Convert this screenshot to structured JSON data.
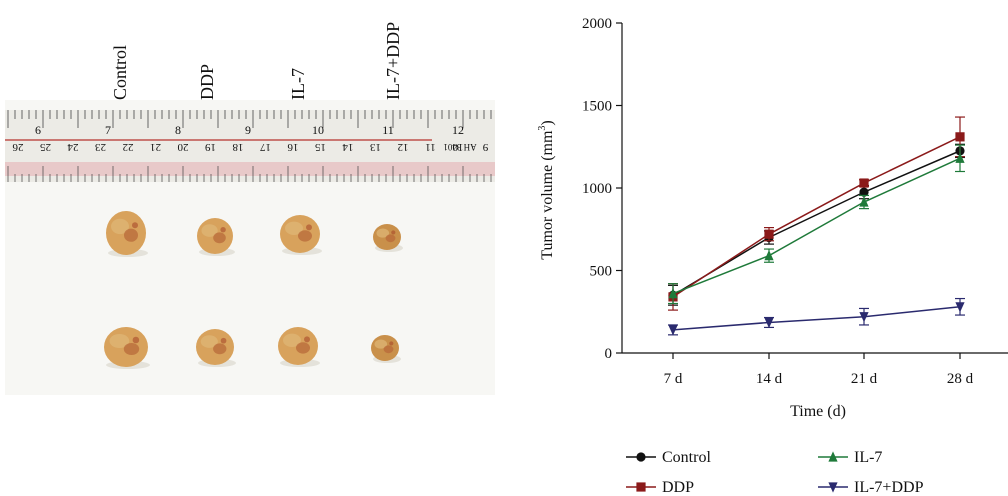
{
  "photo": {
    "group_labels": [
      "Control",
      "DDP",
      "IL-7",
      "IL-7+DDP"
    ],
    "ruler_top_numbers": [
      "6",
      "7",
      "8",
      "9",
      "10",
      "11",
      "12"
    ],
    "ruler_bottom_numbers": [
      "26",
      "25",
      "24",
      "23",
      "22",
      "21",
      "20",
      "19",
      "18",
      "17",
      "16",
      "15",
      "14",
      "13",
      "12",
      "11",
      "10",
      "9"
    ],
    "ruler_stamp": "AH 3401",
    "tumor_colors": [
      "#d8a25c",
      "#c9904a",
      "#b86a3a",
      "#e0b878",
      "#a84a2a"
    ]
  },
  "chart_data": {
    "type": "line",
    "x": [
      "7 d",
      "14 d",
      "21 d",
      "28 d"
    ],
    "xlabel": "Time (d)",
    "ylabel_main": "Tumor volume (mm",
    "ylabel_sup": "3",
    "ylabel_end": ")",
    "ylim": [
      0,
      2000
    ],
    "yticks": [
      "0",
      "500",
      "1000",
      "1500",
      "2000"
    ],
    "yticks_values": [
      0,
      500,
      1000,
      1500,
      2000
    ],
    "grid": false,
    "legend_position": "bottom",
    "series": [
      {
        "name": "Control",
        "marker": "circle",
        "color": "#111111",
        "values": [
          350,
          700,
          975,
          1225
        ],
        "errors": [
          60,
          40,
          40,
          40
        ]
      },
      {
        "name": "DDP",
        "marker": "square",
        "color": "#8b1a1a",
        "values": [
          340,
          720,
          1030,
          1310
        ],
        "errors": [
          80,
          40,
          20,
          120
        ]
      },
      {
        "name": "IL-7",
        "marker": "triangle-up",
        "color": "#1f7a3a",
        "values": [
          360,
          590,
          915,
          1180
        ],
        "errors": [
          60,
          40,
          40,
          80
        ]
      },
      {
        "name": "IL-7+DDP",
        "marker": "triangle-down",
        "color": "#2a2a6e",
        "values": [
          140,
          185,
          220,
          280
        ],
        "errors": [
          30,
          30,
          50,
          50
        ]
      }
    ]
  }
}
